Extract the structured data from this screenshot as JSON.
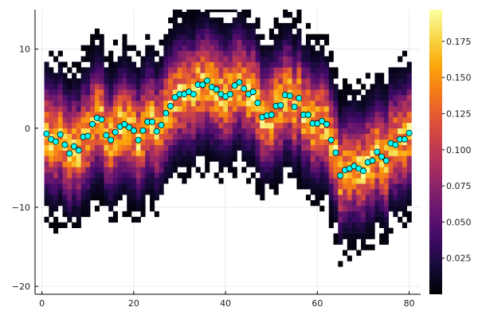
{
  "chart_data": {
    "type": "heatmap",
    "title": "",
    "xlabel": "",
    "ylabel": "",
    "xlim": [
      -1.5,
      82.5
    ],
    "ylim": [
      -21,
      15
    ],
    "x_ticks": [
      0,
      20,
      40,
      60,
      80
    ],
    "y_ticks": [
      -20,
      -10,
      0,
      10
    ],
    "grid": true,
    "colormap": "inferno",
    "colorbar": {
      "min": 0.0,
      "max": 0.197,
      "ticks": [
        0.025,
        0.05,
        0.075,
        0.1,
        0.125,
        0.15,
        0.175
      ],
      "tick_labels": [
        "0.025",
        "0.050",
        "0.075",
        "0.100",
        "0.125",
        "0.150",
        "0.175"
      ]
    },
    "density_band": {
      "description_of_data": "per-column density of sampled values; x from 1 to 80",
      "x": [
        1,
        80
      ],
      "column_std": 3.7,
      "peak_value": 0.16
    },
    "scatter_series": {
      "marker_color": "#00ffff",
      "x": [
        1,
        2,
        3,
        4,
        5,
        6,
        7,
        8,
        9,
        10,
        11,
        12,
        13,
        14,
        15,
        16,
        17,
        18,
        19,
        20,
        21,
        22,
        23,
        24,
        25,
        26,
        27,
        28,
        29,
        30,
        31,
        32,
        33,
        34,
        35,
        36,
        37,
        38,
        39,
        40,
        41,
        42,
        43,
        44,
        45,
        46,
        47,
        48,
        49,
        50,
        51,
        52,
        53,
        54,
        55,
        56,
        57,
        58,
        59,
        60,
        61,
        62,
        63,
        64,
        65,
        66,
        67,
        68,
        69,
        70,
        71,
        72,
        73,
        74,
        75,
        76,
        77,
        78,
        79,
        80
      ],
      "y": [
        -0.7,
        -1.4,
        -1.7,
        -0.8,
        -2.1,
        -3.2,
        -2.3,
        -2.8,
        -1.1,
        -1.0,
        0.5,
        1.3,
        1.1,
        -0.9,
        -1.5,
        -0.5,
        0.2,
        0.5,
        0.1,
        -0.3,
        -1.5,
        -0.3,
        0.8,
        0.8,
        -0.4,
        0.4,
        1.9,
        2.8,
        3.9,
        4.3,
        4.3,
        4.6,
        4.3,
        5.5,
        5.5,
        6.0,
        5.2,
        4.9,
        4.3,
        4.0,
        4.3,
        5.4,
        5.8,
        5.0,
        4.3,
        4.6,
        3.2,
        1.4,
        1.6,
        1.7,
        2.8,
        2.9,
        4.2,
        4.1,
        2.7,
        3.8,
        1.7,
        1.7,
        0.6,
        0.6,
        0.9,
        0.5,
        -1.5,
        -3.1,
        -6.0,
        -5.3,
        -5.1,
        -4.8,
        -5.1,
        -5.4,
        -4.3,
        -4.1,
        -3.0,
        -3.6,
        -4.1,
        -1.9,
        -2.1,
        -1.4,
        -1.4,
        -0.6
      ]
    }
  }
}
